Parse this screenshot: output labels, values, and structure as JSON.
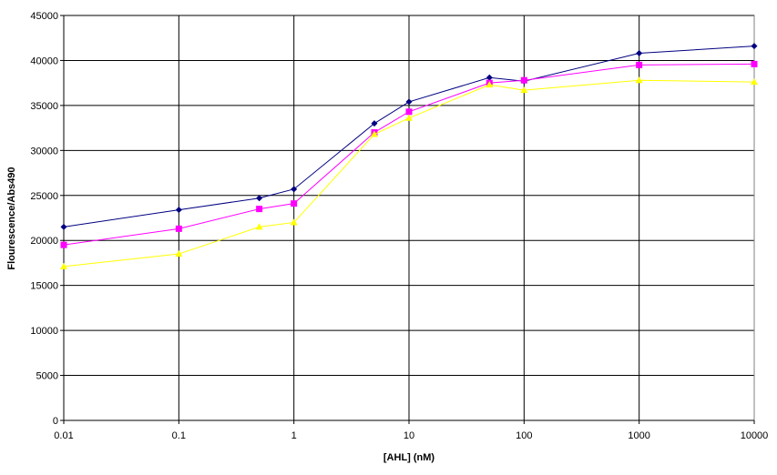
{
  "chart_data": {
    "type": "line",
    "title": "",
    "xlabel": "[AHL] (nM)",
    "ylabel": "Flourescence/Abs490",
    "xscale": "log",
    "xlim": [
      0.01,
      10000
    ],
    "ylim": [
      0,
      45000
    ],
    "x_ticks": [
      "0.01",
      "0.1",
      "1",
      "10",
      "100",
      "1000",
      "10000"
    ],
    "y_ticks": [
      "0",
      "5000",
      "10000",
      "15000",
      "20000",
      "25000",
      "30000",
      "35000",
      "40000",
      "45000"
    ],
    "grid": true,
    "legend": "none",
    "x": [
      0.01,
      0.1,
      0.5,
      1,
      5,
      10,
      50,
      100,
      1000,
      10000
    ],
    "series": [
      {
        "color": "#000080",
        "marker": "diamond",
        "values": [
          21500,
          23400,
          24700,
          25700,
          33000,
          35400,
          38100,
          37700,
          40800,
          41600
        ]
      },
      {
        "color": "#FF00FF",
        "marker": "square",
        "values": [
          19500,
          21300,
          23500,
          24100,
          32000,
          34300,
          37500,
          37800,
          39500,
          39600
        ]
      },
      {
        "color": "#FFFF00",
        "marker": "triangle",
        "values": [
          17100,
          18500,
          21500,
          22000,
          31800,
          33600,
          37300,
          36700,
          37800,
          37600
        ]
      }
    ]
  }
}
